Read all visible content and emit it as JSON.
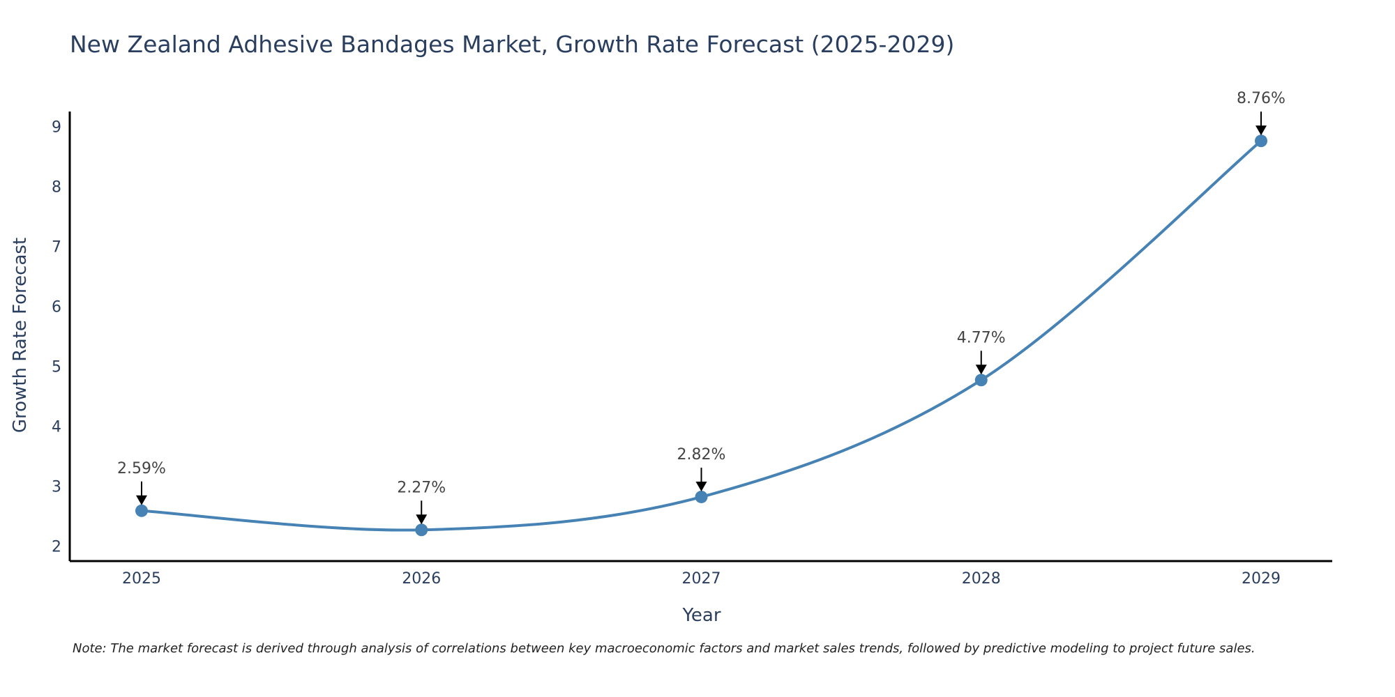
{
  "chart_data": {
    "type": "line",
    "title": "New Zealand Adhesive Bandages Market, Growth Rate Forecast (2025-2029)",
    "xlabel": "Year",
    "ylabel": "Growth Rate Forecast",
    "categories": [
      "2025",
      "2026",
      "2027",
      "2028",
      "2029"
    ],
    "values": [
      2.59,
      2.27,
      2.82,
      4.77,
      8.76
    ],
    "data_labels": [
      "2.59%",
      "2.27%",
      "2.82%",
      "4.77%",
      "8.76%"
    ],
    "y_ticks": [
      "2",
      "3",
      "4",
      "5",
      "6",
      "7",
      "8",
      "9"
    ],
    "ylim": [
      1.75,
      9.25
    ],
    "grid": false,
    "legend": "none",
    "series_color": "#4682b4",
    "annotation_color": "#000000",
    "axis_color": "#000000"
  },
  "note": "Note: The market forecast is derived through analysis of correlations between key macroeconomic factors and market sales trends, followed by predictive modeling to project future sales."
}
